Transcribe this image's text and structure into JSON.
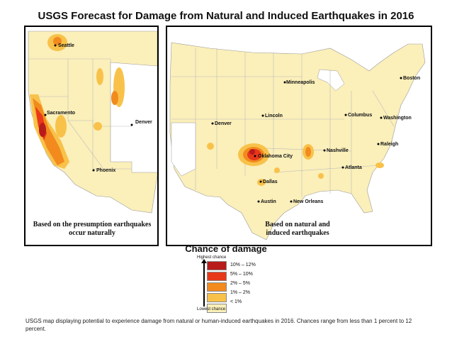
{
  "title": "USGS Forecast for Damage from Natural and Induced Earthquakes in 2016",
  "west_map": {
    "note": "Based on the presumption earthquakes occur naturally",
    "cities": [
      "Seattle",
      "Sacramento",
      "Denver",
      "Phoenix"
    ]
  },
  "us_map": {
    "note": "Based on natural and induced earthquakes",
    "cities": [
      "Minneapolis",
      "Boston",
      "Lincoln",
      "Columbus",
      "Washington",
      "Denver",
      "Oklahoma City",
      "Nashville",
      "Raleigh",
      "Atlanta",
      "Dallas",
      "Austin",
      "New Orleans"
    ]
  },
  "legend": {
    "title": "Chance of damage",
    "highest_label": "Highest chance",
    "lowest_label": "Lowest chance",
    "classes": [
      {
        "label": "10% – 12%",
        "color": "#b81b1b"
      },
      {
        "label": "5% – 10%",
        "color": "#e8381a"
      },
      {
        "label": "2% – 5%",
        "color": "#f28a1e"
      },
      {
        "label": "1% – 2%",
        "color": "#f8c24a"
      },
      {
        "label": "< 1%",
        "color": "#fbefba"
      }
    ]
  },
  "caption": "USGS map displaying potential to experience damage from natural or human-induced earthquakes in 2016. Chances range from less than 1 percent to 12 percent."
}
